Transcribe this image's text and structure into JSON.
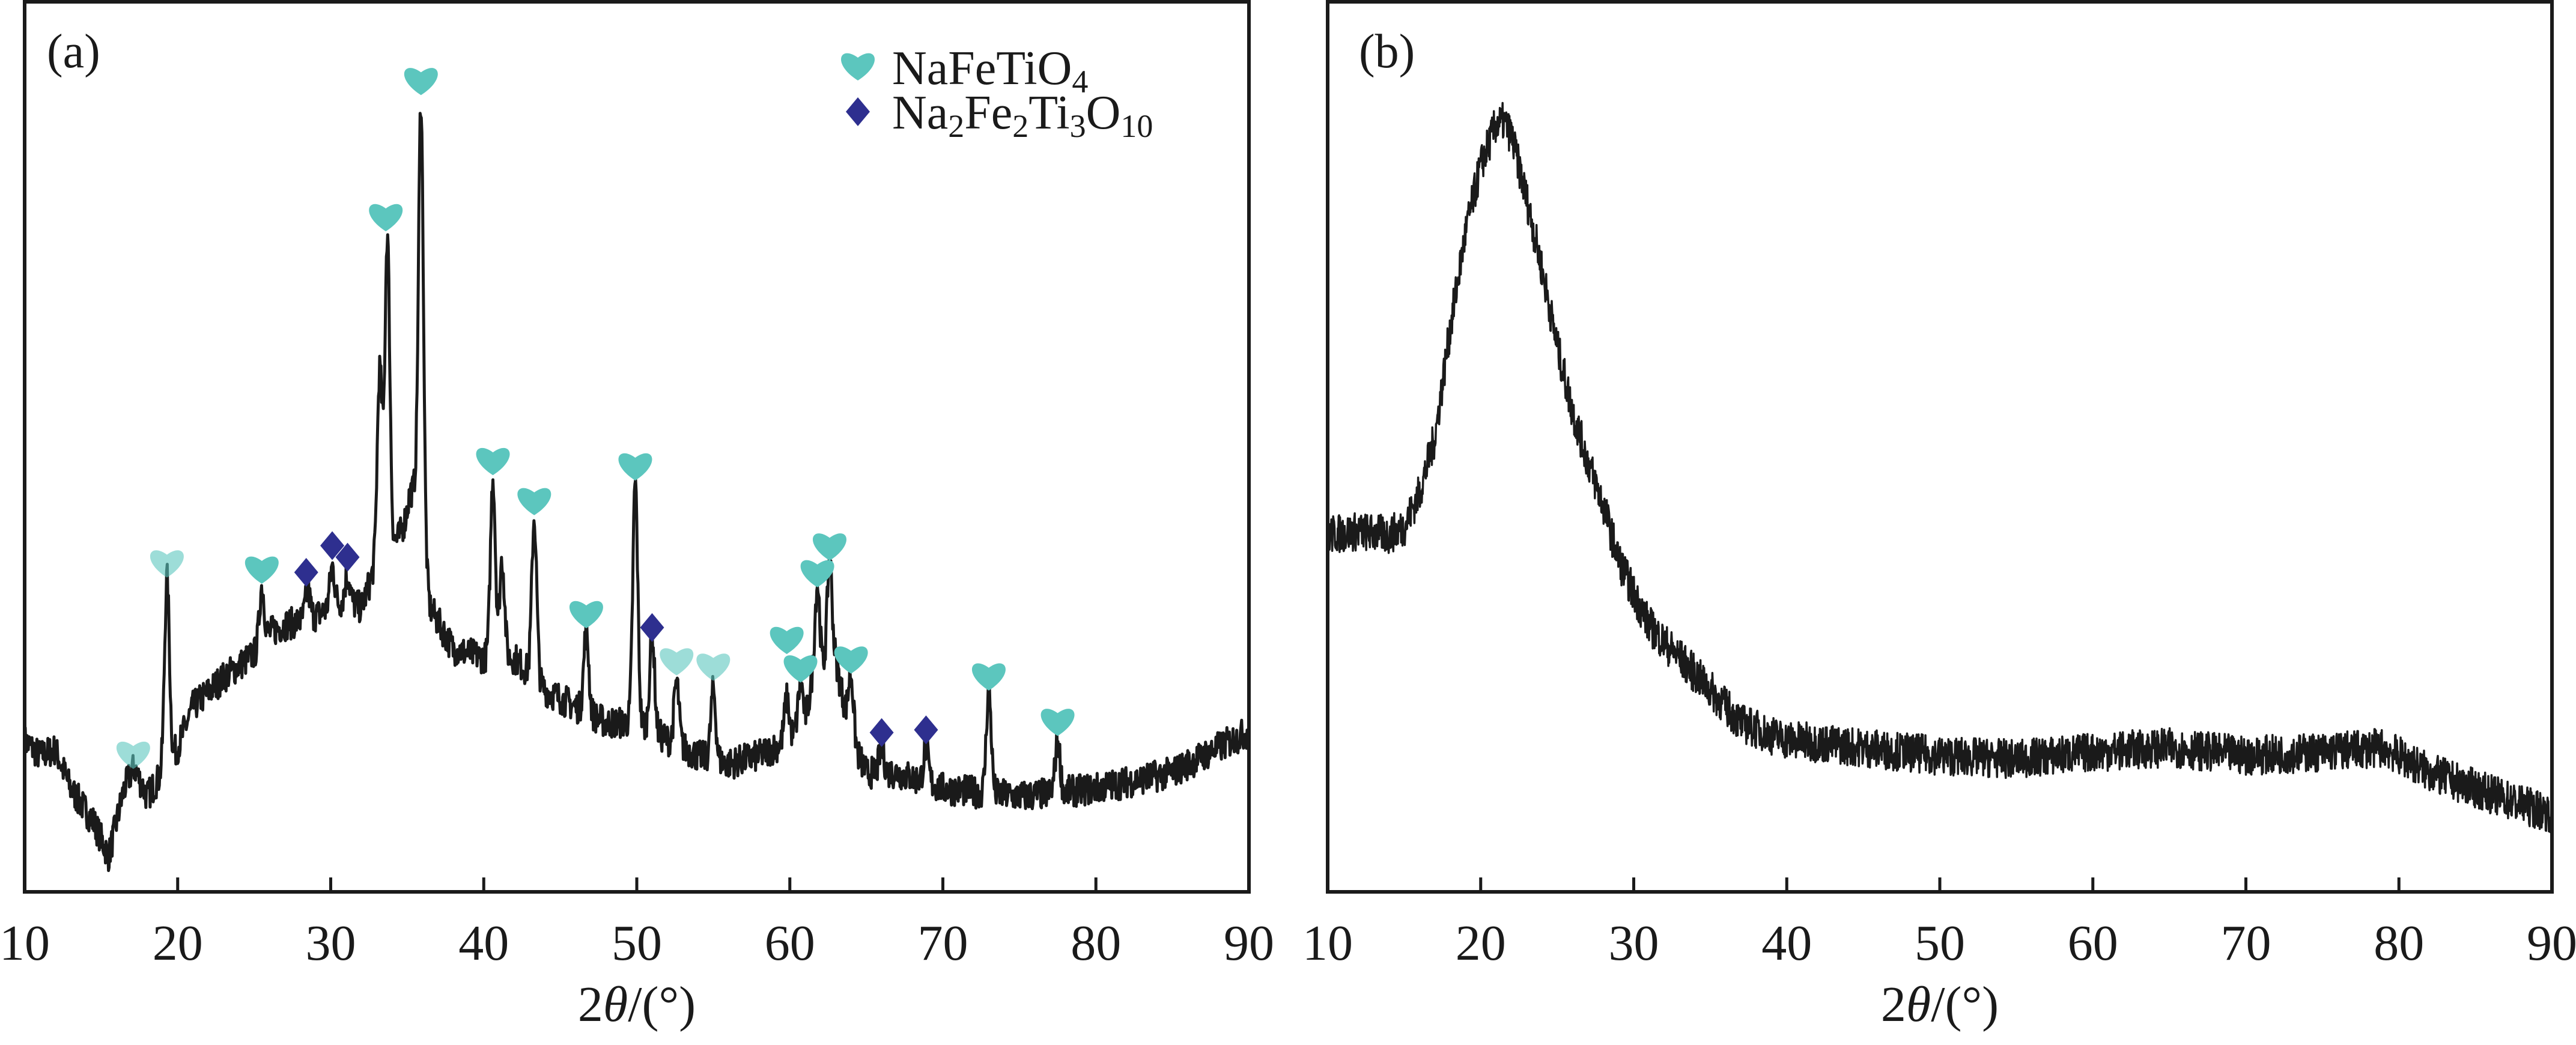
{
  "chart_data": [
    {
      "type": "line",
      "panel_label": "(a)",
      "xlabel_parts": [
        "2",
        "θ",
        "/(°)"
      ],
      "ylabel": "",
      "xlim": [
        10,
        90
      ],
      "ylim": [
        0,
        100
      ],
      "xticks": [
        "10",
        "20",
        "30",
        "40",
        "50",
        "60",
        "70",
        "80",
        "90"
      ],
      "grid": false,
      "legend_position": "top-right",
      "legend": [
        {
          "marker": "heart",
          "color": "#5cc6be",
          "parts": [
            [
              "NaFeTiO",
              false
            ],
            [
              "4",
              true
            ]
          ]
        },
        {
          "marker": "diamond",
          "color": "#2e2f8f",
          "parts": [
            [
              "Na",
              false
            ],
            [
              "2",
              true
            ],
            [
              "Fe",
              false
            ],
            [
              "2",
              true
            ],
            [
              "Ti",
              false
            ],
            [
              "3",
              true
            ],
            [
              "O",
              false
            ],
            [
              "10",
              true
            ]
          ]
        }
      ],
      "baseline": [
        [
          10,
          17
        ],
        [
          11,
          15.3
        ],
        [
          12,
          16
        ],
        [
          13,
          11.6
        ],
        [
          14.5,
          7.9
        ],
        [
          15.5,
          4
        ],
        [
          16.5,
          11.6
        ],
        [
          17.2,
          13.8
        ],
        [
          18,
          10.7
        ],
        [
          19,
          13.4
        ],
        [
          20,
          16.2
        ],
        [
          21,
          20.8
        ],
        [
          23,
          24.1
        ],
        [
          25,
          26.7
        ],
        [
          26,
          29.1
        ],
        [
          27,
          30
        ],
        [
          28,
          30.4
        ],
        [
          29,
          31
        ],
        [
          30,
          31.9
        ],
        [
          31,
          32.8
        ],
        [
          32,
          31.9
        ],
        [
          32.8,
          36
        ],
        [
          34.5,
          40
        ],
        [
          35.5,
          44.8
        ],
        [
          36.5,
          31.9
        ],
        [
          38,
          27.3
        ],
        [
          40,
          26.3
        ],
        [
          42,
          26.3
        ],
        [
          44,
          22.7
        ],
        [
          46,
          20.8
        ],
        [
          48,
          19
        ],
        [
          50,
          19
        ],
        [
          52,
          17.1
        ],
        [
          54,
          15.3
        ],
        [
          56,
          14.4
        ],
        [
          58,
          15.3
        ],
        [
          60,
          17.1
        ],
        [
          61,
          19
        ],
        [
          61.5,
          24
        ],
        [
          63,
          26
        ],
        [
          64,
          17.1
        ],
        [
          65,
          13.4
        ],
        [
          67,
          13.4
        ],
        [
          70,
          11.6
        ],
        [
          75,
          10.7
        ],
        [
          80,
          11.6
        ],
        [
          85,
          13.4
        ],
        [
          88,
          16.2
        ],
        [
          90,
          18
        ]
      ],
      "peaks": [
        {
          "x": 17.0,
          "y": 13.5
        },
        {
          "x": 19.3,
          "y": 35.2
        },
        {
          "x": 25.5,
          "y": 34.3
        },
        {
          "x": 28.5,
          "y": 33.7
        },
        {
          "x": 30.1,
          "y": 36.5
        },
        {
          "x": 31.1,
          "y": 35.5
        },
        {
          "x": 33.2,
          "y": 58.6
        },
        {
          "x": 33.7,
          "y": 73.7
        },
        {
          "x": 35.2,
          "y": 44.8
        },
        {
          "x": 35.9,
          "y": 89
        },
        {
          "x": 40.6,
          "y": 46.6
        },
        {
          "x": 41.2,
          "y": 37.4
        },
        {
          "x": 43.3,
          "y": 42
        },
        {
          "x": 46.7,
          "y": 29.5
        },
        {
          "x": 49.9,
          "y": 46
        },
        {
          "x": 51.0,
          "y": 29.1
        },
        {
          "x": 52.6,
          "y": 23.6
        },
        {
          "x": 55.0,
          "y": 22.7
        },
        {
          "x": 59.8,
          "y": 21.7
        },
        {
          "x": 60.7,
          "y": 23.6
        },
        {
          "x": 61.8,
          "y": 34.6
        },
        {
          "x": 62.6,
          "y": 37.4
        },
        {
          "x": 64.0,
          "y": 24.5
        },
        {
          "x": 66.0,
          "y": 16.2
        },
        {
          "x": 68.9,
          "y": 16.2
        },
        {
          "x": 73.0,
          "y": 22.7
        },
        {
          "x": 77.5,
          "y": 17.1
        }
      ],
      "markers": [
        {
          "type": "heart",
          "x": 17.1,
          "y": 15.3,
          "faded": true
        },
        {
          "type": "heart",
          "x": 19.3,
          "y": 36.8,
          "faded": true
        },
        {
          "type": "heart",
          "x": 25.5,
          "y": 36.1
        },
        {
          "type": "diamond",
          "x": 28.4,
          "y": 35.9
        },
        {
          "type": "diamond",
          "x": 30.1,
          "y": 38.9
        },
        {
          "type": "diamond",
          "x": 31.1,
          "y": 37.6
        },
        {
          "type": "heart",
          "x": 33.6,
          "y": 75.7
        },
        {
          "type": "heart",
          "x": 35.9,
          "y": 91
        },
        {
          "type": "heart",
          "x": 40.6,
          "y": 48.3
        },
        {
          "type": "heart",
          "x": 43.3,
          "y": 43.8
        },
        {
          "type": "heart",
          "x": 46.7,
          "y": 31.1
        },
        {
          "type": "heart",
          "x": 49.9,
          "y": 47.7
        },
        {
          "type": "diamond",
          "x": 51.0,
          "y": 29.7
        },
        {
          "type": "heart",
          "x": 52.6,
          "y": 25.8,
          "faded": true
        },
        {
          "type": "heart",
          "x": 55.0,
          "y": 25.2,
          "faded": true
        },
        {
          "type": "heart",
          "x": 59.8,
          "y": 28.2
        },
        {
          "type": "heart",
          "x": 60.7,
          "y": 25
        },
        {
          "type": "heart",
          "x": 61.8,
          "y": 35.7
        },
        {
          "type": "heart",
          "x": 62.6,
          "y": 38.7
        },
        {
          "type": "heart",
          "x": 64.0,
          "y": 26
        },
        {
          "type": "diamond",
          "x": 66.0,
          "y": 17.9
        },
        {
          "type": "diamond",
          "x": 68.9,
          "y": 18.2
        },
        {
          "type": "heart",
          "x": 73.0,
          "y": 24.1
        },
        {
          "type": "heart",
          "x": 77.5,
          "y": 19
        }
      ],
      "noise": 1.8
    },
    {
      "type": "line",
      "panel_label": "(b)",
      "xlabel_parts": [
        "2",
        "θ",
        "/(°)"
      ],
      "ylabel": "",
      "xlim": [
        10,
        90
      ],
      "ylim": [
        0,
        100
      ],
      "xticks": [
        "10",
        "20",
        "30",
        "40",
        "50",
        "60",
        "70",
        "80",
        "90"
      ],
      "grid": false,
      "curve": [
        [
          10,
          40.1
        ],
        [
          12,
          40.5
        ],
        [
          14,
          40.1
        ],
        [
          15,
          41
        ],
        [
          16,
          44.8
        ],
        [
          17,
          51
        ],
        [
          18,
          63.2
        ],
        [
          19,
          74
        ],
        [
          20,
          81.6
        ],
        [
          21,
          86.2
        ],
        [
          21.5,
          86.5
        ],
        [
          22,
          85
        ],
        [
          23,
          77.9
        ],
        [
          24,
          70
        ],
        [
          25,
          61.3
        ],
        [
          26,
          54
        ],
        [
          27,
          48.4
        ],
        [
          28,
          43.5
        ],
        [
          29,
          37.4
        ],
        [
          30,
          33.5
        ],
        [
          31,
          30
        ],
        [
          32,
          28
        ],
        [
          33,
          26.3
        ],
        [
          35,
          22.7
        ],
        [
          37,
          19
        ],
        [
          39,
          17.6
        ],
        [
          40,
          17.1
        ],
        [
          45,
          16.2
        ],
        [
          50,
          15.3
        ],
        [
          55,
          14.9
        ],
        [
          60,
          15.7
        ],
        [
          65,
          16.2
        ],
        [
          70,
          15.3
        ],
        [
          75,
          15.7
        ],
        [
          79,
          16.2
        ],
        [
          81,
          14.4
        ],
        [
          82,
          13.4
        ],
        [
          85,
          11.6
        ],
        [
          88,
          9.8
        ],
        [
          90,
          8.8
        ]
      ],
      "noise": 2.2
    }
  ]
}
